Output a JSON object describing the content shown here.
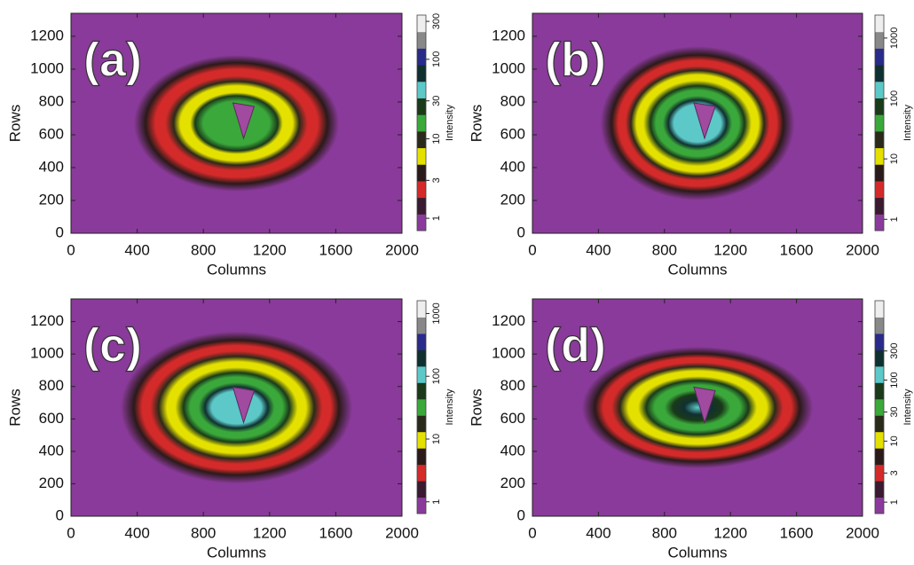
{
  "chart_data": [
    {
      "type": "heatmap",
      "panel_label": "(a)",
      "xlabel": "Columns",
      "ylabel": "Rows",
      "xlim": [
        0,
        2000
      ],
      "xticks": [
        0,
        400,
        800,
        1200,
        1600,
        2000
      ],
      "ylim": [
        0,
        1340
      ],
      "yticks": [
        0,
        200,
        400,
        600,
        800,
        1000,
        1200
      ],
      "colorbar": {
        "label": "Intensity",
        "log": true,
        "lim": [
          0.7,
          360
        ],
        "ticks": [
          1,
          3,
          10,
          30,
          100,
          300
        ]
      },
      "colormap": [
        "#8a3a9a",
        "#3a1a30",
        "#d42a2a",
        "#2a1a1a",
        "#e4e000",
        "#2a2a1a",
        "#3aa83a",
        "#1a3a1a",
        "#5cc8c8",
        "#103030",
        "#2a2a8a",
        "#888888",
        "#eeeeee"
      ]
    },
    {
      "type": "heatmap",
      "panel_label": "(b)",
      "xlabel": "Columns",
      "ylabel": "Rows",
      "xlim": [
        0,
        2000
      ],
      "xticks": [
        0,
        400,
        800,
        1200,
        1600,
        2000
      ],
      "ylim": [
        0,
        1340
      ],
      "yticks": [
        0,
        200,
        400,
        600,
        800,
        1000,
        1200
      ],
      "colorbar": {
        "label": "Intensity",
        "log": true,
        "lim": [
          0.65,
          2400
        ],
        "ticks": [
          1,
          10,
          100,
          1000
        ]
      },
      "colormap": [
        "#8a3a9a",
        "#3a1a30",
        "#d42a2a",
        "#2a1a1a",
        "#e4e000",
        "#2a2a1a",
        "#3aa83a",
        "#1a3a1a",
        "#5cc8c8",
        "#103030",
        "#2a2a8a",
        "#888888",
        "#eeeeee"
      ]
    },
    {
      "type": "heatmap",
      "panel_label": "(c)",
      "xlabel": "Columns",
      "ylabel": "Rows",
      "xlim": [
        0,
        2000
      ],
      "xticks": [
        0,
        400,
        800,
        1200,
        1600,
        2000
      ],
      "ylim": [
        0,
        1340
      ],
      "yticks": [
        0,
        200,
        400,
        600,
        800,
        1000,
        1200
      ],
      "colorbar": {
        "label": "Intensity",
        "log": true,
        "lim": [
          0.65,
          1600
        ],
        "ticks": [
          1,
          10,
          100,
          1000
        ]
      },
      "colormap": [
        "#8a3a9a",
        "#3a1a30",
        "#d42a2a",
        "#2a1a1a",
        "#e4e000",
        "#2a2a1a",
        "#3aa83a",
        "#1a3a1a",
        "#5cc8c8",
        "#103030",
        "#2a2a8a",
        "#888888",
        "#eeeeee"
      ]
    },
    {
      "type": "heatmap",
      "panel_label": "(d)",
      "xlabel": "Columns",
      "ylabel": "Rows",
      "xlim": [
        0,
        2000
      ],
      "xticks": [
        0,
        400,
        800,
        1200,
        1600,
        2000
      ],
      "ylim": [
        0,
        1340
      ],
      "yticks": [
        0,
        200,
        400,
        600,
        800,
        1000,
        1200
      ],
      "colorbar": {
        "label": "Intensity",
        "log": true,
        "lim": [
          0.65,
          2000
        ],
        "ticks": [
          1,
          3,
          10,
          30,
          100,
          300
        ]
      },
      "colormap": [
        "#8a3a9a",
        "#3a1a30",
        "#d42a2a",
        "#2a1a1a",
        "#e4e000",
        "#2a2a1a",
        "#3aa83a",
        "#1a3a1a",
        "#5cc8c8",
        "#103030",
        "#2a2a8a",
        "#888888",
        "#eeeeee"
      ]
    }
  ]
}
